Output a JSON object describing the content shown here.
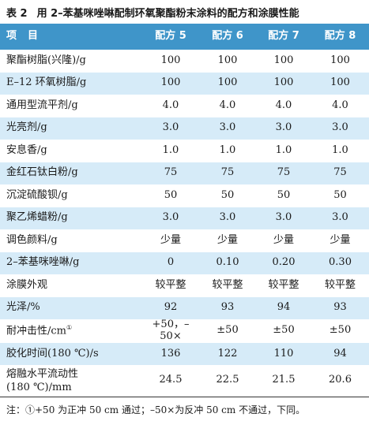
{
  "caption": {
    "number": "表 2",
    "title": "用 2–苯基咪唑啉配制环氧聚酯粉末涂料的配方和涂膜性能"
  },
  "table": {
    "header": [
      "项目",
      "配方 5",
      "配方 6",
      "配方 7",
      "配方 8"
    ],
    "rows": [
      {
        "label": "聚酯树脂(兴隆)/g",
        "values": [
          "100",
          "100",
          "100",
          "100"
        ]
      },
      {
        "label": "E–12 环氧树脂/g",
        "values": [
          "100",
          "100",
          "100",
          "100"
        ]
      },
      {
        "label": "通用型流平剂/g",
        "values": [
          "4.0",
          "4.0",
          "4.0",
          "4.0"
        ]
      },
      {
        "label": "光亮剂/g",
        "values": [
          "3.0",
          "3.0",
          "3.0",
          "3.0"
        ]
      },
      {
        "label": "安息香/g",
        "values": [
          "1.0",
          "1.0",
          "1.0",
          "1.0"
        ]
      },
      {
        "label": "金红石钛白粉/g",
        "values": [
          "75",
          "75",
          "75",
          "75"
        ]
      },
      {
        "label": "沉淀硫酸钡/g",
        "values": [
          "50",
          "50",
          "50",
          "50"
        ]
      },
      {
        "label": "聚乙烯蜡粉/g",
        "values": [
          "3.0",
          "3.0",
          "3.0",
          "3.0"
        ]
      },
      {
        "label": "调色颜料/g",
        "values": [
          "少量",
          "少量",
          "少量",
          "少量"
        ]
      },
      {
        "label": "2–苯基咪唑啉/g",
        "values": [
          "0",
          "0.10",
          "0.20",
          "0.30"
        ]
      },
      {
        "label": "涂膜外观",
        "values": [
          "较平整",
          "较平整",
          "较平整",
          "较平整"
        ]
      },
      {
        "label": "光泽/%",
        "values": [
          "92",
          "93",
          "94",
          "93"
        ]
      },
      {
        "label": "耐冲击性/cm",
        "label_sup": "①",
        "values": [
          "+50，–50×",
          "±50",
          "±50",
          "±50"
        ]
      },
      {
        "label": "胶化时间(180 ℃)/s",
        "values": [
          "136",
          "122",
          "110",
          "94"
        ]
      },
      {
        "label": "熔融水平流动性",
        "label_line2": "(180 ℃)/mm",
        "values": [
          "24.5",
          "22.5",
          "21.5",
          "20.6"
        ]
      }
    ]
  },
  "note": "注：①+50 为正冲 50 cm 通过；–50×为反冲 50 cm 不通过，下同。",
  "colors": {
    "header_bg": "#3f95c9",
    "stripe_bg": "#d6ebf8",
    "header_text": "#ffffff"
  }
}
